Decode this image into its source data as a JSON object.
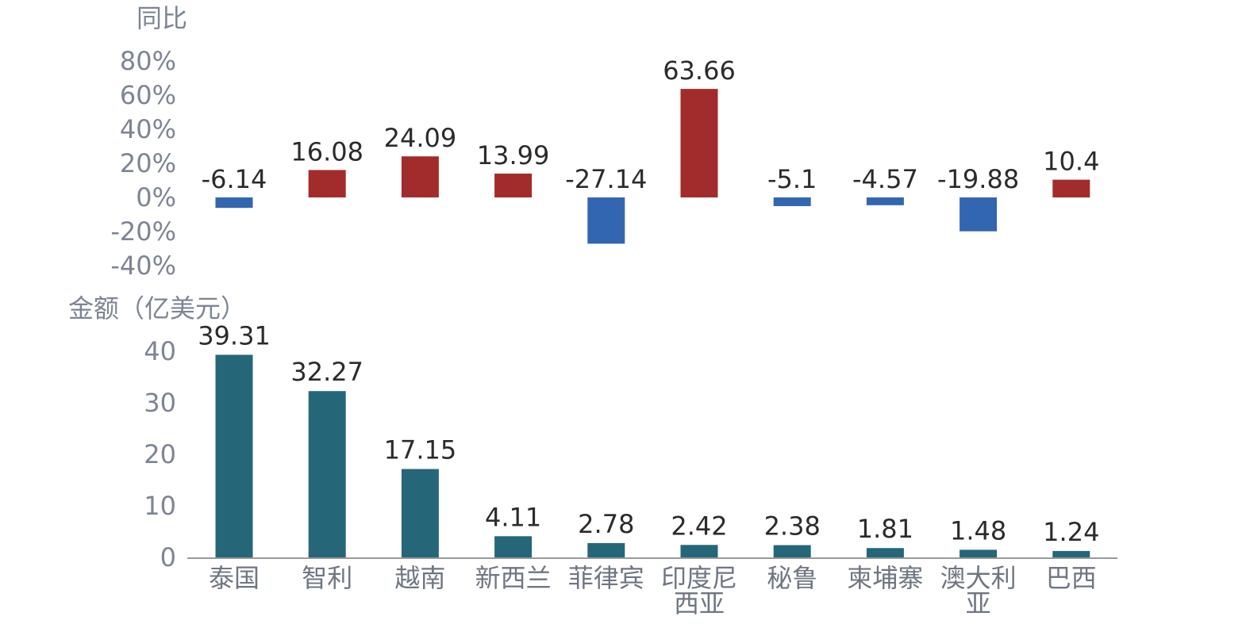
{
  "chart_data": [
    {
      "type": "bar",
      "ylabel": "同比",
      "ylim": [
        -40,
        80
      ],
      "yticks": [
        "80%",
        "60%",
        "40%",
        "20%",
        "0%",
        "-20%",
        "-40%"
      ],
      "categories": [
        "泰国",
        "智利",
        "越南",
        "新西兰",
        "菲律宾",
        "印度尼西亚",
        "秘鲁",
        "柬埔寨",
        "澳大利亚",
        "巴西"
      ],
      "values": [
        -6.14,
        16.08,
        24.09,
        13.99,
        -27.14,
        63.66,
        -5.1,
        -4.57,
        -19.88,
        10.4
      ],
      "data_labels": [
        "-6.14",
        "16.08",
        "24.09",
        "13.99",
        "-27.14",
        "63.66",
        "-5.1",
        "-4.57",
        "-19.88",
        "10.4"
      ],
      "colors": {
        "positive": "#a22c2b",
        "negative": "#3366b0"
      },
      "grid": false
    },
    {
      "type": "bar",
      "ylabel": "金额（亿美元）",
      "ylim": [
        0,
        40
      ],
      "yticks": [
        "40",
        "30",
        "20",
        "10",
        "0"
      ],
      "categories": [
        "泰国",
        "智利",
        "越南",
        "新西兰",
        "菲律宾",
        "印度尼西亚",
        "秘鲁",
        "柬埔寨",
        "澳大利亚",
        "巴西"
      ],
      "category_lines": [
        [
          "泰国"
        ],
        [
          "智利"
        ],
        [
          "越南"
        ],
        [
          "新西兰"
        ],
        [
          "菲律宾"
        ],
        [
          "印度尼",
          "西亚"
        ],
        [
          "秘鲁"
        ],
        [
          "柬埔寨"
        ],
        [
          "澳大利",
          "亚"
        ],
        [
          "巴西"
        ]
      ],
      "values": [
        39.31,
        32.27,
        17.15,
        4.11,
        2.78,
        2.42,
        2.38,
        1.81,
        1.48,
        1.24
      ],
      "data_labels": [
        "39.31",
        "32.27",
        "17.15",
        "4.11",
        "2.78",
        "2.42",
        "2.38",
        "1.81",
        "1.48",
        "1.24"
      ],
      "colors": {
        "bar": "#256778",
        "baseline": "#9a9a9a"
      },
      "grid": false
    }
  ]
}
